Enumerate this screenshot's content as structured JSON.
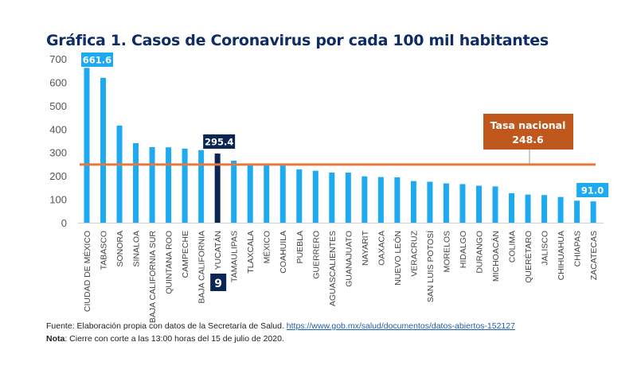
{
  "title": "Gráfica 1. Casos de Coronavirus por cada 100 mil habitantes",
  "chart_data": {
    "type": "bar",
    "title": "Gráfica 1. Casos de Coronavirus por cada 100 mil habitantes",
    "xlabel": "",
    "ylabel": "",
    "ylim": [
      0,
      700
    ],
    "yticks": [
      0,
      100,
      200,
      300,
      400,
      500,
      600,
      700
    ],
    "grid": false,
    "categories": [
      "CIUDAD DE MÉXICO",
      "TABASCO",
      "SONORA",
      "SINALOA",
      "BAJA CALIFORNIA SUR",
      "QUINTANA ROO",
      "CAMPECHE",
      "BAJA CALIFORNIA",
      "YUCATÁN",
      "TAMAULIPAS",
      "TLAXCALA",
      "MÉXICO",
      "COAHUILA",
      "PUEBLA",
      "GUERRERO",
      "AGUASCALIENTES",
      "GUANAJUATO",
      "NAYARIT",
      "OAXACA",
      "NUEVO LEÓN",
      "VERACRUZ",
      "SAN LUIS POTOSÍ",
      "MORELOS",
      "HIDALGO",
      "DURANGO",
      "MICHOACÁN",
      "COLIMA",
      "QUERÉTARO",
      "JALISCO",
      "CHIHUAHUA",
      "CHIAPAS",
      "ZACATECAS"
    ],
    "values": [
      661.6,
      619,
      415,
      340,
      323,
      322,
      316,
      310,
      295.4,
      265,
      245,
      245,
      245,
      228,
      222,
      214,
      214,
      198,
      195,
      194,
      178,
      175,
      168,
      165,
      158,
      155,
      126,
      120,
      118,
      110,
      94,
      91.0
    ],
    "highlight_index": 8,
    "data_labels": [
      {
        "index": 0,
        "text": "661.6"
      },
      {
        "index": 8,
        "text": "295.4"
      },
      {
        "index": 31,
        "text": "91.0"
      }
    ],
    "rank_badge": {
      "index": 8,
      "text": "9"
    },
    "reference_line": {
      "value": 248.6,
      "label": "Tasa nacional",
      "value_text": "248.6"
    },
    "colors": {
      "bar": "#1eaaf1",
      "highlight": "#0b2555",
      "reference": "#e8783a",
      "reference_box": "#c0581e",
      "title": "#0f2d64"
    }
  },
  "footer": {
    "source_prefix": "Fuente: Elaboración propia con datos de la Secretaría de Salud. ",
    "source_link": "https://www.gob.mx/salud/documentos/datos-abiertos-152127",
    "note_label": "Nota",
    "note_text": ": Cierre con corte a las 13:00 horas del 15 de julio de 2020."
  }
}
